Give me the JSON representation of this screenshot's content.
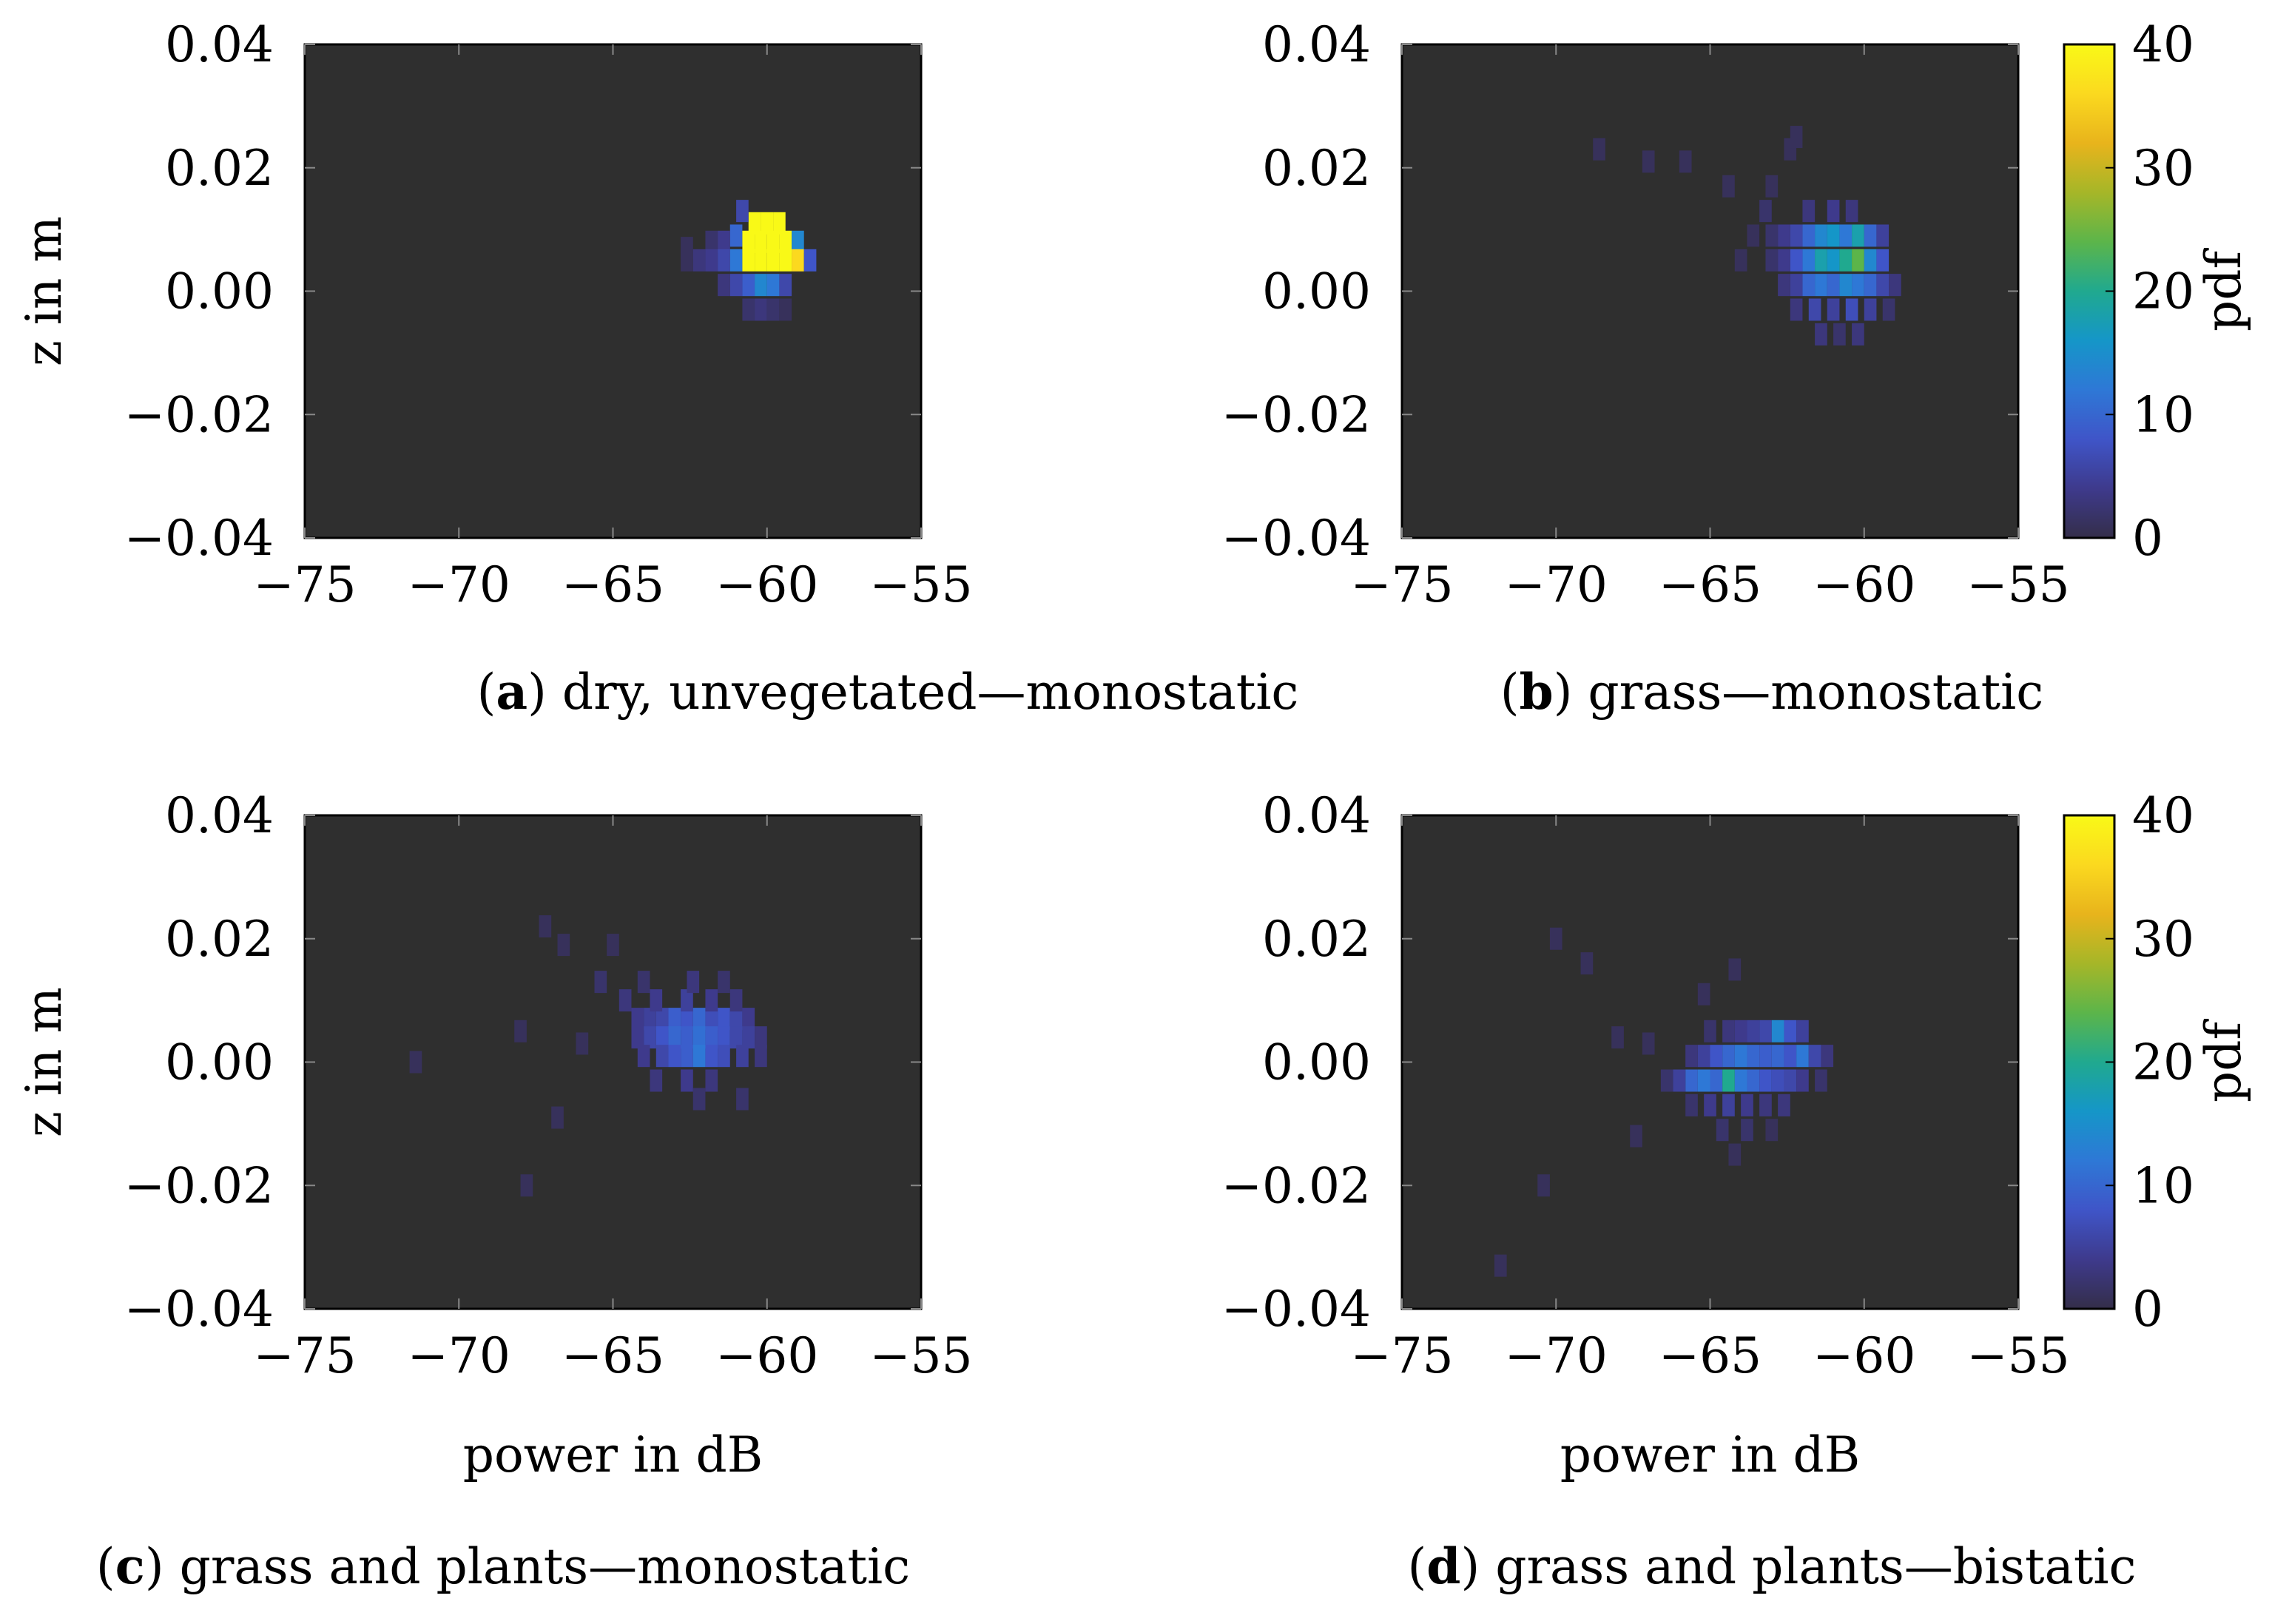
{
  "chart_data": [
    {
      "type": "heatmap",
      "panel": "a",
      "caption_letter": "a",
      "caption_text": "dry, unvegetated—monostatic",
      "xlabel": "",
      "ylabel": "z in m",
      "xlim": [
        -75,
        -55
      ],
      "ylim": [
        -0.04,
        0.04
      ],
      "x_ticks": [
        "−75",
        "−70",
        "−65",
        "−60",
        "−55"
      ],
      "y_ticks": [
        "0.04",
        "0.02",
        "0.00",
        "−0.02",
        "−0.04"
      ],
      "colorbar": false,
      "cells": [
        {
          "x": -60.4,
          "z": 0.011,
          "v": 40
        },
        {
          "x": -60.0,
          "z": 0.011,
          "v": 40
        },
        {
          "x": -59.6,
          "z": 0.011,
          "v": 40
        },
        {
          "x": -60.8,
          "z": 0.013,
          "v": 6
        },
        {
          "x": -61.0,
          "z": 0.009,
          "v": 10
        },
        {
          "x": -60.6,
          "z": 0.008,
          "v": 40
        },
        {
          "x": -60.2,
          "z": 0.008,
          "v": 40
        },
        {
          "x": -59.8,
          "z": 0.008,
          "v": 40
        },
        {
          "x": -59.4,
          "z": 0.008,
          "v": 40
        },
        {
          "x": -59.0,
          "z": 0.008,
          "v": 14
        },
        {
          "x": -61.4,
          "z": 0.008,
          "v": 4
        },
        {
          "x": -61.8,
          "z": 0.008,
          "v": 2
        },
        {
          "x": -62.6,
          "z": 0.007,
          "v": 1
        },
        {
          "x": -61.0,
          "z": 0.005,
          "v": 12
        },
        {
          "x": -60.6,
          "z": 0.005,
          "v": 40
        },
        {
          "x": -60.2,
          "z": 0.005,
          "v": 40
        },
        {
          "x": -59.8,
          "z": 0.005,
          "v": 40
        },
        {
          "x": -59.4,
          "z": 0.005,
          "v": 40
        },
        {
          "x": -59.0,
          "z": 0.005,
          "v": 36
        },
        {
          "x": -58.6,
          "z": 0.005,
          "v": 8
        },
        {
          "x": -61.4,
          "z": 0.005,
          "v": 6
        },
        {
          "x": -61.8,
          "z": 0.005,
          "v": 4
        },
        {
          "x": -62.2,
          "z": 0.005,
          "v": 3
        },
        {
          "x": -62.6,
          "z": 0.005,
          "v": 1
        },
        {
          "x": -61.0,
          "z": 0.001,
          "v": 6
        },
        {
          "x": -60.6,
          "z": 0.001,
          "v": 9
        },
        {
          "x": -60.2,
          "z": 0.001,
          "v": 14
        },
        {
          "x": -59.8,
          "z": 0.001,
          "v": 12
        },
        {
          "x": -59.4,
          "z": 0.001,
          "v": 6
        },
        {
          "x": -61.4,
          "z": 0.001,
          "v": 3
        },
        {
          "x": -60.6,
          "z": -0.003,
          "v": 2
        },
        {
          "x": -60.2,
          "z": -0.003,
          "v": 3
        },
        {
          "x": -59.8,
          "z": -0.003,
          "v": 2
        },
        {
          "x": -59.4,
          "z": -0.003,
          "v": 1
        }
      ]
    },
    {
      "type": "heatmap",
      "panel": "b",
      "caption_letter": "b",
      "caption_text": "grass—monostatic",
      "xlabel": "",
      "ylabel": "",
      "xlim": [
        -75,
        -55
      ],
      "ylim": [
        -0.04,
        0.04
      ],
      "x_ticks": [
        "−75",
        "−70",
        "−65",
        "−60",
        "−55"
      ],
      "y_ticks": [
        "0.04",
        "0.02",
        "0.00",
        "−0.02",
        "−0.04"
      ],
      "colorbar": true,
      "colorbar_label": "pdf",
      "colorbar_ticks": [
        "40",
        "30",
        "20",
        "10",
        "0"
      ],
      "cells": [
        {
          "x": -61.8,
          "z": 0.009,
          "v": 10
        },
        {
          "x": -61.4,
          "z": 0.009,
          "v": 14
        },
        {
          "x": -61.0,
          "z": 0.009,
          "v": 16
        },
        {
          "x": -60.6,
          "z": 0.009,
          "v": 12
        },
        {
          "x": -60.2,
          "z": 0.009,
          "v": 18
        },
        {
          "x": -59.8,
          "z": 0.009,
          "v": 10
        },
        {
          "x": -62.2,
          "z": 0.009,
          "v": 6
        },
        {
          "x": -62.6,
          "z": 0.009,
          "v": 4
        },
        {
          "x": -59.4,
          "z": 0.009,
          "v": 5
        },
        {
          "x": -63.0,
          "z": 0.009,
          "v": 2
        },
        {
          "x": -63.6,
          "z": 0.009,
          "v": 1
        },
        {
          "x": -61.8,
          "z": 0.005,
          "v": 12
        },
        {
          "x": -61.4,
          "z": 0.005,
          "v": 18
        },
        {
          "x": -61.0,
          "z": 0.005,
          "v": 16
        },
        {
          "x": -60.6,
          "z": 0.005,
          "v": 20
        },
        {
          "x": -60.2,
          "z": 0.005,
          "v": 24
        },
        {
          "x": -59.8,
          "z": 0.005,
          "v": 14
        },
        {
          "x": -59.4,
          "z": 0.005,
          "v": 8
        },
        {
          "x": -62.2,
          "z": 0.005,
          "v": 8
        },
        {
          "x": -62.6,
          "z": 0.005,
          "v": 4
        },
        {
          "x": -63.0,
          "z": 0.005,
          "v": 2
        },
        {
          "x": -64.0,
          "z": 0.005,
          "v": 1
        },
        {
          "x": -61.8,
          "z": 0.001,
          "v": 10
        },
        {
          "x": -61.4,
          "z": 0.001,
          "v": 12
        },
        {
          "x": -61.0,
          "z": 0.001,
          "v": 10
        },
        {
          "x": -60.6,
          "z": 0.001,
          "v": 14
        },
        {
          "x": -60.2,
          "z": 0.001,
          "v": 12
        },
        {
          "x": -59.8,
          "z": 0.001,
          "v": 10
        },
        {
          "x": -59.4,
          "z": 0.001,
          "v": 6
        },
        {
          "x": -62.2,
          "z": 0.001,
          "v": 5
        },
        {
          "x": -62.6,
          "z": 0.001,
          "v": 3
        },
        {
          "x": -59.0,
          "z": 0.001,
          "v": 3
        },
        {
          "x": -61.6,
          "z": -0.003,
          "v": 6
        },
        {
          "x": -61.0,
          "z": -0.003,
          "v": 5
        },
        {
          "x": -60.4,
          "z": -0.003,
          "v": 7
        },
        {
          "x": -59.8,
          "z": -0.003,
          "v": 5
        },
        {
          "x": -62.2,
          "z": -0.003,
          "v": 3
        },
        {
          "x": -59.2,
          "z": -0.003,
          "v": 2
        },
        {
          "x": -61.4,
          "z": -0.007,
          "v": 3
        },
        {
          "x": -60.8,
          "z": -0.007,
          "v": 2
        },
        {
          "x": -60.2,
          "z": -0.007,
          "v": 3
        },
        {
          "x": -61.8,
          "z": 0.013,
          "v": 3
        },
        {
          "x": -61.0,
          "z": 0.013,
          "v": 4
        },
        {
          "x": -60.4,
          "z": 0.013,
          "v": 3
        },
        {
          "x": -63.2,
          "z": 0.013,
          "v": 2
        },
        {
          "x": -64.4,
          "z": 0.017,
          "v": 1
        },
        {
          "x": -63.0,
          "z": 0.017,
          "v": 1
        },
        {
          "x": -65.8,
          "z": 0.021,
          "v": 1
        },
        {
          "x": -67.0,
          "z": 0.021,
          "v": 1
        },
        {
          "x": -68.6,
          "z": 0.023,
          "v": 1
        },
        {
          "x": -62.4,
          "z": 0.023,
          "v": 1
        },
        {
          "x": -62.2,
          "z": 0.025,
          "v": 1
        }
      ]
    },
    {
      "type": "heatmap",
      "panel": "c",
      "caption_letter": "c",
      "caption_text": "grass and plants—monostatic",
      "xlabel": "power in dB",
      "ylabel": "z in m",
      "xlim": [
        -75,
        -55
      ],
      "ylim": [
        -0.04,
        0.04
      ],
      "x_ticks": [
        "−75",
        "−70",
        "−65",
        "−60",
        "−55"
      ],
      "y_ticks": [
        "0.04",
        "0.02",
        "0.00",
        "−0.02",
        "−0.04"
      ],
      "colorbar": false,
      "cells": [
        {
          "x": -63.4,
          "z": 0.007,
          "v": 6
        },
        {
          "x": -63.0,
          "z": 0.007,
          "v": 9
        },
        {
          "x": -62.6,
          "z": 0.007,
          "v": 8
        },
        {
          "x": -62.2,
          "z": 0.007,
          "v": 10
        },
        {
          "x": -61.8,
          "z": 0.007,
          "v": 7
        },
        {
          "x": -61.4,
          "z": 0.007,
          "v": 8
        },
        {
          "x": -61.0,
          "z": 0.007,
          "v": 6
        },
        {
          "x": -63.8,
          "z": 0.007,
          "v": 5
        },
        {
          "x": -64.2,
          "z": 0.007,
          "v": 4
        },
        {
          "x": -60.6,
          "z": 0.007,
          "v": 4
        },
        {
          "x": -63.4,
          "z": 0.004,
          "v": 8
        },
        {
          "x": -63.0,
          "z": 0.004,
          "v": 10
        },
        {
          "x": -62.6,
          "z": 0.004,
          "v": 9
        },
        {
          "x": -62.2,
          "z": 0.004,
          "v": 11
        },
        {
          "x": -61.8,
          "z": 0.004,
          "v": 9
        },
        {
          "x": -61.4,
          "z": 0.004,
          "v": 8
        },
        {
          "x": -61.0,
          "z": 0.004,
          "v": 6
        },
        {
          "x": -63.8,
          "z": 0.004,
          "v": 6
        },
        {
          "x": -64.2,
          "z": 0.004,
          "v": 4
        },
        {
          "x": -60.6,
          "z": 0.004,
          "v": 5
        },
        {
          "x": -60.2,
          "z": 0.004,
          "v": 3
        },
        {
          "x": -63.0,
          "z": 0.001,
          "v": 8
        },
        {
          "x": -62.6,
          "z": 0.001,
          "v": 9
        },
        {
          "x": -62.2,
          "z": 0.001,
          "v": 12
        },
        {
          "x": -61.8,
          "z": 0.001,
          "v": 8
        },
        {
          "x": -61.4,
          "z": 0.001,
          "v": 7
        },
        {
          "x": -63.4,
          "z": 0.001,
          "v": 6
        },
        {
          "x": -64.0,
          "z": 0.001,
          "v": 4
        },
        {
          "x": -60.8,
          "z": 0.001,
          "v": 5
        },
        {
          "x": -60.2,
          "z": 0.001,
          "v": 3
        },
        {
          "x": -64.6,
          "z": 0.01,
          "v": 3
        },
        {
          "x": -63.6,
          "z": 0.01,
          "v": 4
        },
        {
          "x": -62.6,
          "z": 0.01,
          "v": 5
        },
        {
          "x": -61.8,
          "z": 0.01,
          "v": 4
        },
        {
          "x": -61.0,
          "z": 0.01,
          "v": 3
        },
        {
          "x": -65.4,
          "z": 0.013,
          "v": 2
        },
        {
          "x": -64.0,
          "z": 0.013,
          "v": 2
        },
        {
          "x": -62.4,
          "z": 0.013,
          "v": 3
        },
        {
          "x": -61.4,
          "z": 0.013,
          "v": 2
        },
        {
          "x": -62.6,
          "z": -0.003,
          "v": 4
        },
        {
          "x": -61.8,
          "z": -0.003,
          "v": 3
        },
        {
          "x": -63.6,
          "z": -0.003,
          "v": 3
        },
        {
          "x": -62.2,
          "z": -0.006,
          "v": 2
        },
        {
          "x": -60.8,
          "z": -0.006,
          "v": 2
        },
        {
          "x": -66.6,
          "z": 0.019,
          "v": 1
        },
        {
          "x": -65.0,
          "z": 0.019,
          "v": 1
        },
        {
          "x": -67.2,
          "z": 0.022,
          "v": 1
        },
        {
          "x": -66.0,
          "z": 0.003,
          "v": 1
        },
        {
          "x": -68.0,
          "z": 0.005,
          "v": 1
        },
        {
          "x": -66.8,
          "z": -0.009,
          "v": 1
        },
        {
          "x": -67.8,
          "z": -0.02,
          "v": 1
        },
        {
          "x": -71.4,
          "z": 0.0,
          "v": 1
        }
      ]
    },
    {
      "type": "heatmap",
      "panel": "d",
      "caption_letter": "d",
      "caption_text": "grass and plants—bistatic",
      "xlabel": "power in dB",
      "ylabel": "",
      "xlim": [
        -75,
        -55
      ],
      "ylim": [
        -0.04,
        0.04
      ],
      "x_ticks": [
        "−75",
        "−70",
        "−65",
        "−60",
        "−55"
      ],
      "y_ticks": [
        "0.04",
        "0.02",
        "0.00",
        "−0.02",
        "−0.04"
      ],
      "colorbar": true,
      "colorbar_label": "pdf",
      "colorbar_ticks": [
        "40",
        "30",
        "20",
        "10",
        "0"
      ],
      "cells": [
        {
          "x": -64.8,
          "z": 0.001,
          "v": 8
        },
        {
          "x": -64.4,
          "z": 0.001,
          "v": 10
        },
        {
          "x": -64.0,
          "z": 0.001,
          "v": 12
        },
        {
          "x": -63.6,
          "z": 0.001,
          "v": 10
        },
        {
          "x": -63.2,
          "z": 0.001,
          "v": 9
        },
        {
          "x": -62.8,
          "z": 0.001,
          "v": 10
        },
        {
          "x": -62.4,
          "z": 0.001,
          "v": 8
        },
        {
          "x": -62.0,
          "z": 0.001,
          "v": 12
        },
        {
          "x": -61.6,
          "z": 0.001,
          "v": 6
        },
        {
          "x": -65.2,
          "z": 0.001,
          "v": 5
        },
        {
          "x": -65.6,
          "z": 0.001,
          "v": 3
        },
        {
          "x": -61.2,
          "z": 0.001,
          "v": 3
        },
        {
          "x": -65.6,
          "z": -0.003,
          "v": 10
        },
        {
          "x": -65.2,
          "z": -0.003,
          "v": 12
        },
        {
          "x": -64.8,
          "z": -0.003,
          "v": 10
        },
        {
          "x": -64.4,
          "z": -0.003,
          "v": 20
        },
        {
          "x": -64.0,
          "z": -0.003,
          "v": 12
        },
        {
          "x": -63.6,
          "z": -0.003,
          "v": 10
        },
        {
          "x": -63.2,
          "z": -0.003,
          "v": 8
        },
        {
          "x": -62.8,
          "z": -0.003,
          "v": 7
        },
        {
          "x": -62.4,
          "z": -0.003,
          "v": 6
        },
        {
          "x": -66.0,
          "z": -0.003,
          "v": 5
        },
        {
          "x": -62.0,
          "z": -0.003,
          "v": 4
        },
        {
          "x": -66.4,
          "z": -0.003,
          "v": 2
        },
        {
          "x": -61.4,
          "z": -0.003,
          "v": 2
        },
        {
          "x": -63.2,
          "z": 0.005,
          "v": 6
        },
        {
          "x": -62.8,
          "z": 0.005,
          "v": 14
        },
        {
          "x": -62.4,
          "z": 0.005,
          "v": 8
        },
        {
          "x": -64.0,
          "z": 0.005,
          "v": 4
        },
        {
          "x": -63.6,
          "z": 0.005,
          "v": 5
        },
        {
          "x": -64.4,
          "z": 0.005,
          "v": 3
        },
        {
          "x": -62.0,
          "z": 0.005,
          "v": 5
        },
        {
          "x": -65.0,
          "z": 0.005,
          "v": 2
        },
        {
          "x": -65.0,
          "z": -0.007,
          "v": 4
        },
        {
          "x": -64.4,
          "z": -0.007,
          "v": 5
        },
        {
          "x": -63.8,
          "z": -0.007,
          "v": 4
        },
        {
          "x": -63.2,
          "z": -0.007,
          "v": 3
        },
        {
          "x": -62.6,
          "z": -0.007,
          "v": 3
        },
        {
          "x": -65.6,
          "z": -0.007,
          "v": 2
        },
        {
          "x": -64.6,
          "z": -0.011,
          "v": 2
        },
        {
          "x": -63.8,
          "z": -0.011,
          "v": 2
        },
        {
          "x": -63.0,
          "z": -0.011,
          "v": 1
        },
        {
          "x": -64.2,
          "z": -0.015,
          "v": 1
        },
        {
          "x": -67.0,
          "z": 0.003,
          "v": 1
        },
        {
          "x": -68.0,
          "z": 0.004,
          "v": 1
        },
        {
          "x": -69.0,
          "z": 0.016,
          "v": 1
        },
        {
          "x": -70.0,
          "z": 0.02,
          "v": 1
        },
        {
          "x": -67.4,
          "z": -0.012,
          "v": 1
        },
        {
          "x": -70.4,
          "z": -0.02,
          "v": 1
        },
        {
          "x": -71.8,
          "z": -0.033,
          "v": 1
        },
        {
          "x": -64.2,
          "z": 0.015,
          "v": 1
        },
        {
          "x": -65.2,
          "z": 0.011,
          "v": 1
        }
      ]
    }
  ],
  "colors": {
    "background_plot": "#2f2f2f",
    "colormap": [
      "#342e4a",
      "#3e3a8c",
      "#3f55c8",
      "#2e78d6",
      "#1596c8",
      "#20a98f",
      "#5cb54a",
      "#a6b628",
      "#e8b41c",
      "#fbd91f",
      "#f9f917"
    ]
  }
}
